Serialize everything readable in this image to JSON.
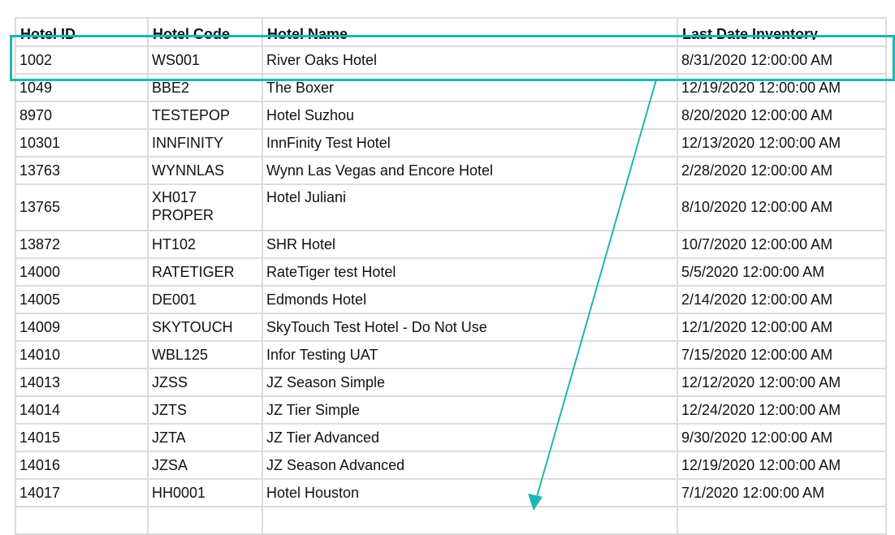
{
  "columns": [
    "Hotel ID",
    "Hotel Code",
    "Hotel Name",
    "Last Date Inventory"
  ],
  "rows": [
    [
      "1002",
      "WS001",
      "River Oaks Hotel",
      "8/31/2020 12:00:00 AM"
    ],
    [
      "1049",
      "BBE2",
      "The Boxer",
      "12/19/2020 12:00:00 AM"
    ],
    [
      "8970",
      "TESTEPOP",
      "Hotel Suzhou",
      "8/20/2020 12:00:00 AM"
    ],
    [
      "10301",
      "INNFINITY",
      "InnFinity Test Hotel",
      "12/13/2020 12:00:00 AM"
    ],
    [
      "13763",
      "WYNNLAS",
      "Wynn Las Vegas and Encore Hotel",
      "2/28/2020 12:00:00 AM"
    ],
    [
      "13765",
      "XH017 PROPER",
      "Hotel Juliani",
      "8/10/2020 12:00:00 AM"
    ],
    [
      "13872",
      "HT102",
      "SHR Hotel",
      "10/7/2020 12:00:00 AM"
    ],
    [
      "14000",
      "RATETIGER",
      "RateTiger test Hotel",
      "5/5/2020 12:00:00 AM"
    ],
    [
      "14005",
      "DE001",
      "Edmonds Hotel",
      "2/14/2020 12:00:00 AM"
    ],
    [
      "14009",
      "SKYTOUCH",
      "SkyTouch Test Hotel - Do Not Use",
      "12/1/2020 12:00:00 AM"
    ],
    [
      "14010",
      "WBL125",
      "Infor Testing UAT",
      "7/15/2020 12:00:00 AM"
    ],
    [
      "14013",
      "JZSS",
      "JZ Season Simple",
      "12/12/2020 12:00:00 AM"
    ],
    [
      "14014",
      "JZTS",
      "JZ Tier Simple",
      "12/24/2020 12:00:00 AM"
    ],
    [
      "14015",
      "JZTA",
      "JZ Tier Advanced",
      "9/30/2020 12:00:00 AM"
    ],
    [
      "14016",
      "JZSA",
      "JZ Season Advanced",
      "12/19/2020 12:00:00 AM"
    ],
    [
      "14017",
      "HH0001",
      "Hotel Houston",
      "7/1/2020 12:00:00 AM"
    ],
    [
      "",
      "",
      "",
      ""
    ]
  ],
  "highlight_color": "#1bb7b2",
  "highlighted_row": "1002"
}
